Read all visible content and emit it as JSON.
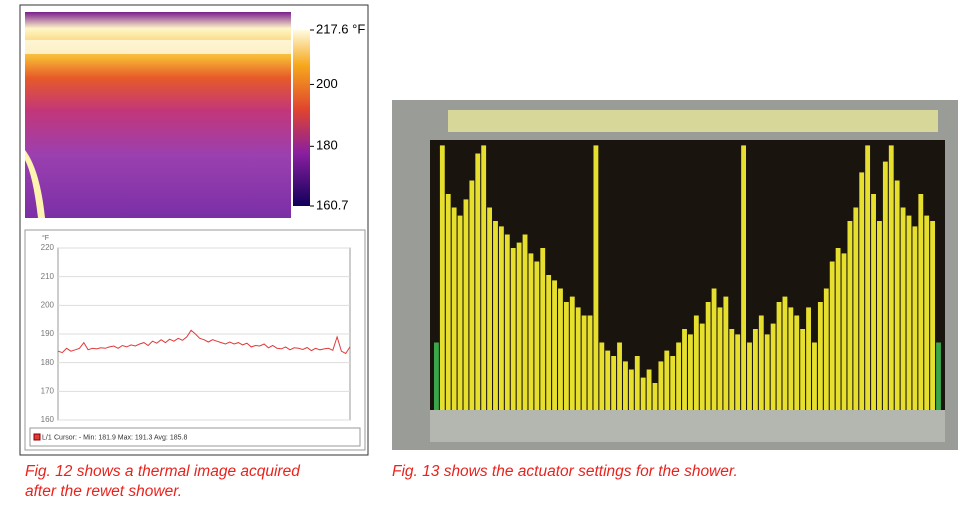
{
  "thermal_image": {
    "colorbar": {
      "lim": [
        160.7,
        217.6
      ],
      "ticks": [
        {
          "value": 217.6,
          "label": "217.6 °F"
        },
        200,
        180,
        160.7
      ]
    }
  },
  "chart_data": [
    {
      "type": "line",
      "y_unit": "°F",
      "ylim": [
        160,
        220
      ],
      "yticks": [
        160,
        170,
        180,
        190,
        200,
        210,
        220
      ],
      "grid": true,
      "series": [
        {
          "name": "L/1",
          "color": "#e03a3a",
          "values": [
            184,
            183.5,
            185,
            184,
            184.5,
            185,
            187,
            184.5,
            185,
            184.8,
            185.2,
            185,
            185.5,
            185.8,
            185,
            186,
            185.5,
            186.2,
            185.8,
            186.5,
            187,
            186,
            187.5,
            186.8,
            188,
            187,
            188.2,
            187.5,
            188.5,
            187.8,
            189,
            191.3,
            190,
            188.5,
            188,
            187.2,
            188,
            187.5,
            187,
            186.5,
            187.2,
            186.5,
            187,
            186.2,
            186.8,
            185.5,
            186,
            185.8,
            186.5,
            185.2,
            186,
            185,
            184.8,
            185.5,
            184.5,
            185.2,
            185,
            184.6,
            185.3,
            184.2,
            185,
            184.5,
            184.8,
            185,
            184.3,
            189,
            184,
            183.2,
            185.5
          ]
        }
      ],
      "legend_text": "Cursor: - Min: 181.9 Max: 191.3 Avg: 185.8"
    },
    {
      "type": "bar",
      "color": "#e6df2e",
      "ylim": [
        0,
        100
      ],
      "values": [
        25,
        98,
        80,
        75,
        72,
        78,
        85,
        95,
        98,
        75,
        70,
        68,
        65,
        60,
        62,
        65,
        58,
        55,
        60,
        50,
        48,
        45,
        40,
        42,
        38,
        35,
        35,
        98,
        25,
        22,
        20,
        25,
        18,
        15,
        20,
        12,
        15,
        10,
        18,
        22,
        20,
        25,
        30,
        28,
        35,
        32,
        40,
        45,
        38,
        42,
        30,
        28,
        98,
        25,
        30,
        35,
        28,
        32,
        40,
        42,
        38,
        35,
        30,
        38,
        25,
        40,
        45,
        55,
        60,
        58,
        70,
        75,
        88,
        98,
        80,
        70,
        92,
        98,
        85,
        75,
        72,
        68,
        80,
        72,
        70,
        25
      ]
    }
  ],
  "captions": [
    "Fig. 12 shows a thermal image acquired after the rewet shower.",
    "Fig. 13 shows the actuator settings for the shower."
  ]
}
